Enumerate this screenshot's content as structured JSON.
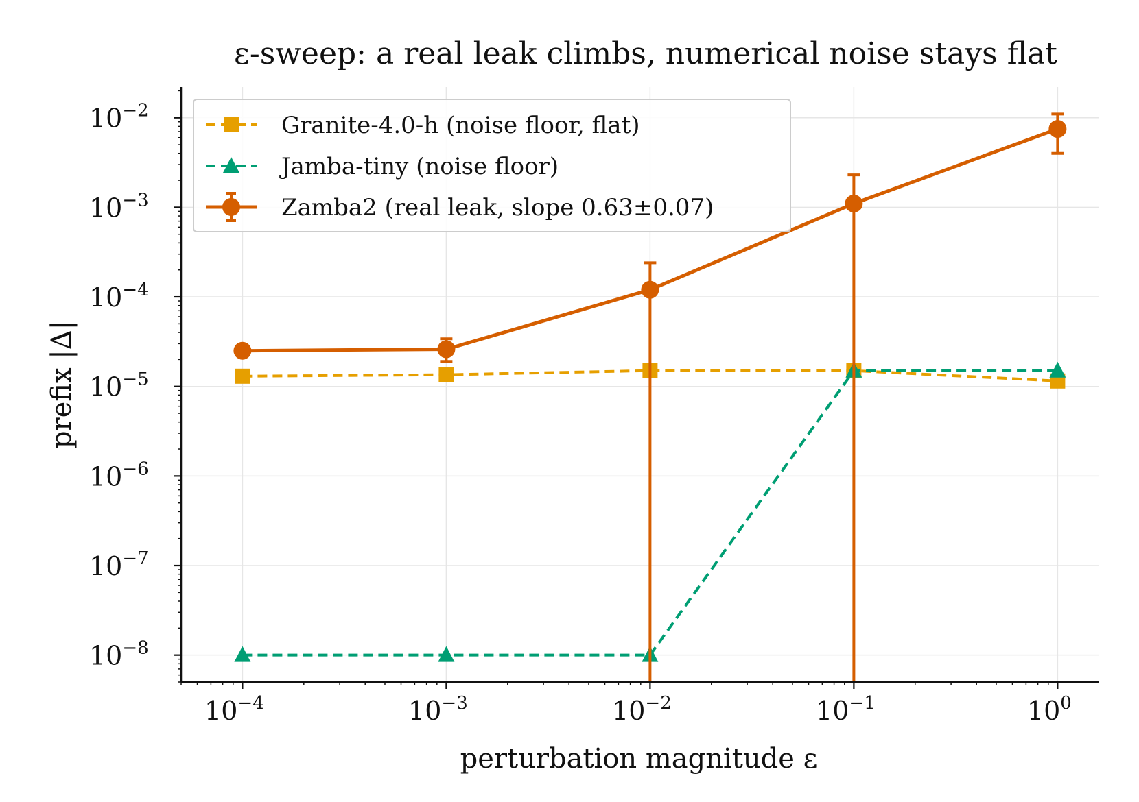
{
  "chart_data": {
    "type": "line",
    "title": "ε-sweep: a real leak climbs, numerical noise stays flat",
    "xlabel": "perturbation magnitude ε",
    "ylabel": "prefix |Δ|",
    "xscale": "log",
    "yscale": "log",
    "xlim": [
      5e-05,
      1.6
    ],
    "ylim": [
      5e-09,
      0.022
    ],
    "grid": true,
    "legend_position": "upper-left",
    "xticks": [
      {
        "value": 0.0001,
        "base": "10",
        "exp": "−4"
      },
      {
        "value": 0.001,
        "base": "10",
        "exp": "−3"
      },
      {
        "value": 0.01,
        "base": "10",
        "exp": "−2"
      },
      {
        "value": 0.1,
        "base": "10",
        "exp": "−1"
      },
      {
        "value": 1,
        "base": "10",
        "exp": "0"
      }
    ],
    "yticks": [
      {
        "value": 1e-08,
        "base": "10",
        "exp": "−8"
      },
      {
        "value": 1e-07,
        "base": "10",
        "exp": "−7"
      },
      {
        "value": 1e-06,
        "base": "10",
        "exp": "−6"
      },
      {
        "value": 1e-05,
        "base": "10",
        "exp": "−5"
      },
      {
        "value": 0.0001,
        "base": "10",
        "exp": "−4"
      },
      {
        "value": 0.001,
        "base": "10",
        "exp": "−3"
      },
      {
        "value": 0.01,
        "base": "10",
        "exp": "−2"
      }
    ],
    "x": [
      0.0001,
      0.001,
      0.01,
      0.1,
      1
    ],
    "series": [
      {
        "name": "Granite-4.0-h (noise floor, flat)",
        "color": "#E69F00",
        "marker": "square",
        "line_style": "dashed",
        "values": [
          1.3e-05,
          1.35e-05,
          1.5e-05,
          1.5e-05,
          1.15e-05
        ]
      },
      {
        "name": "Jamba-tiny (noise floor)",
        "color": "#009E73",
        "marker": "triangle",
        "line_style": "dashed",
        "values": [
          1e-08,
          1e-08,
          1e-08,
          1.5e-05,
          1.5e-05
        ]
      },
      {
        "name": "Zamba2 (real leak, slope 0.63±0.07)",
        "color": "#D55E00",
        "marker": "circle",
        "line_style": "solid",
        "values": [
          2.5e-05,
          2.6e-05,
          0.00012,
          0.0011,
          0.0075
        ],
        "error_low": [
          2.5e-05,
          1.9e-05,
          5e-09,
          5e-09,
          0.004
        ],
        "error_high": [
          2.5e-05,
          3.4e-05,
          0.00024,
          0.0023,
          0.011
        ]
      }
    ]
  }
}
